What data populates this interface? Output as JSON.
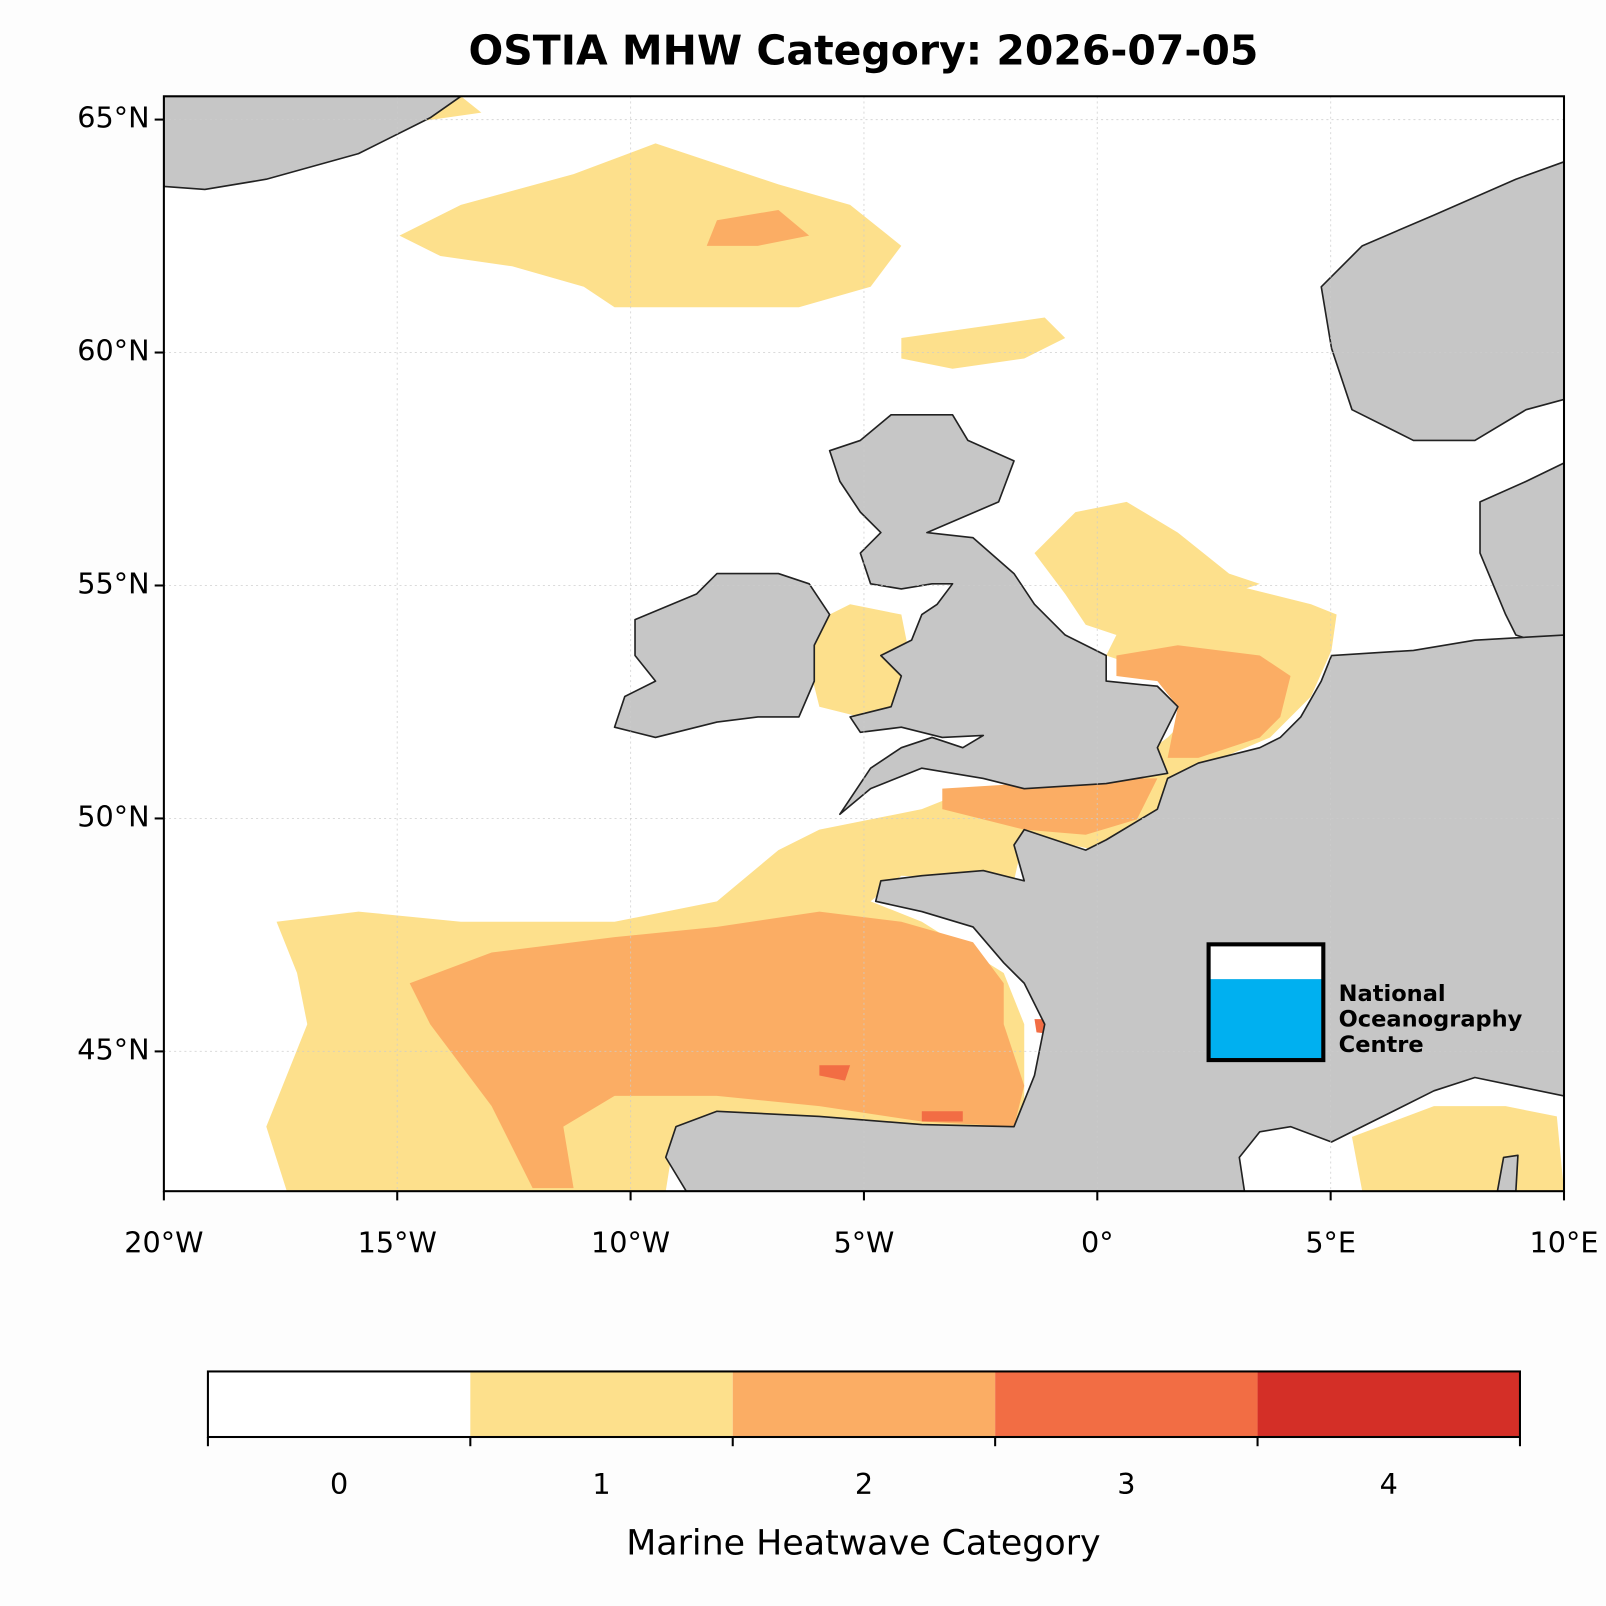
{
  "chart_data": {
    "type": "map",
    "title": "OSTIA MHW Category: 2026-07-05",
    "xlim": [
      -20,
      10
    ],
    "ylim": [
      42,
      65.5
    ],
    "xticks": [
      {
        "value": -20,
        "label": "20°W"
      },
      {
        "value": -15,
        "label": "15°W"
      },
      {
        "value": -10,
        "label": "10°W"
      },
      {
        "value": -5,
        "label": "5°W"
      },
      {
        "value": 0,
        "label": "0°"
      },
      {
        "value": 5,
        "label": "5°E"
      },
      {
        "value": 10,
        "label": "10°E"
      }
    ],
    "yticks": [
      {
        "value": 45,
        "label": "45°N"
      },
      {
        "value": 50,
        "label": "50°N"
      },
      {
        "value": 55,
        "label": "55°N"
      },
      {
        "value": 60,
        "label": "60°N"
      },
      {
        "value": 65,
        "label": "65°N"
      }
    ],
    "grid": true,
    "land_color": "#c6c6c6",
    "colorbar": {
      "label": "Marine Heatwave Category",
      "lim": [
        -0.5,
        4.5
      ],
      "bounds": [
        -0.5,
        0.5,
        1.5,
        2.5,
        3.5,
        4.5
      ],
      "ticks": [
        0,
        1,
        2,
        3,
        4
      ],
      "colors": [
        "#ffffff",
        "#fde08c",
        "#fbad64",
        "#f26d44",
        "#d42f27"
      ]
    }
  },
  "logo": {
    "lines": [
      "National",
      "Oceanography",
      "Centre"
    ]
  }
}
